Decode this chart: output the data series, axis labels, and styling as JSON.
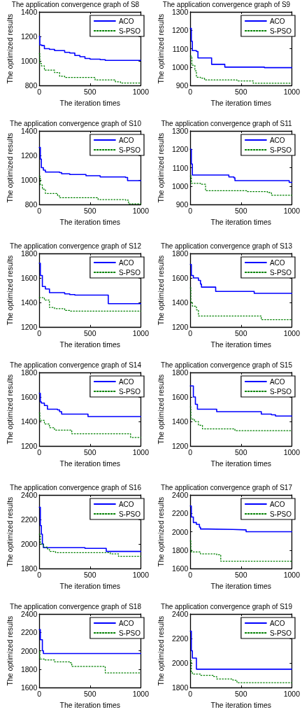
{
  "chart_data": [
    {
      "type": "step",
      "title": "The application convergence graph of S8",
      "xlabel": "The iteration times",
      "ylabel": "The optimized results",
      "xlim": [
        0,
        1000
      ],
      "xticks": [
        0,
        500,
        1000
      ],
      "ylim": [
        800,
        1400
      ],
      "yticks": [
        800,
        1000,
        1200,
        1400
      ],
      "legend": "top right",
      "grid": false,
      "marker": "none",
      "series": [
        {
          "name": "ACO",
          "color": "#0000ff",
          "line_style": "solid",
          "x": [
            0,
            5,
            25,
            50,
            100,
            150,
            250,
            300,
            350,
            400,
            450,
            500,
            600,
            650,
            1000
          ],
          "values": [
            1200,
            1130,
            1125,
            1100,
            1095,
            1085,
            1070,
            1065,
            1045,
            1035,
            1020,
            1015,
            1010,
            1005,
            1005
          ]
        },
        {
          "name": "S-PSO",
          "color": "#008000",
          "line_style": "dotted",
          "x": [
            0,
            5,
            20,
            50,
            150,
            200,
            250,
            500,
            550,
            750,
            800,
            1000
          ],
          "values": [
            1060,
            980,
            960,
            925,
            905,
            875,
            865,
            865,
            845,
            830,
            820,
            820
          ]
        }
      ]
    },
    {
      "type": "step",
      "title": "The application convergence graph of S9",
      "xlabel": "The iteration times",
      "ylabel": "The optimized results",
      "xlim": [
        0,
        1000
      ],
      "xticks": [
        0,
        500,
        1000
      ],
      "ylim": [
        900,
        1300
      ],
      "yticks": [
        900,
        1000,
        1100,
        1200,
        1300
      ],
      "legend": "top right",
      "grid": false,
      "marker": "none",
      "series": [
        {
          "name": "ACO",
          "color": "#0000ff",
          "line_style": "solid",
          "x": [
            0,
            10,
            20,
            60,
            75,
            200,
            210,
            330,
            340,
            700,
            730,
            1000
          ],
          "values": [
            1210,
            1140,
            1090,
            1085,
            1050,
            1050,
            1015,
            1015,
            1000,
            1000,
            997,
            997
          ]
        },
        {
          "name": "S-PSO",
          "color": "#008000",
          "line_style": "dotted",
          "x": [
            0,
            15,
            45,
            60,
            100,
            140,
            450,
            460,
            600,
            620,
            1000
          ],
          "values": [
            1060,
            1010,
            980,
            945,
            940,
            930,
            930,
            925,
            925,
            912,
            912
          ]
        }
      ]
    },
    {
      "type": "step",
      "title": "The application convergence graph of S10",
      "xlabel": "The iteration times",
      "ylabel": "The optimized results",
      "xlim": [
        0,
        1000
      ],
      "xticks": [
        0,
        500,
        1000
      ],
      "ylim": [
        800,
        1400
      ],
      "yticks": [
        800,
        1000,
        1200,
        1400
      ],
      "legend": "top right",
      "grid": false,
      "marker": "none",
      "series": [
        {
          "name": "ACO",
          "color": "#0000ff",
          "line_style": "solid",
          "x": [
            0,
            10,
            20,
            40,
            60,
            200,
            220,
            300,
            460,
            600,
            850,
            870,
            1000
          ],
          "values": [
            1265,
            1170,
            1100,
            1080,
            1065,
            1060,
            1050,
            1045,
            1035,
            1025,
            1020,
            995,
            995
          ]
        },
        {
          "name": "S-PSO",
          "color": "#008000",
          "line_style": "dotted",
          "x": [
            0,
            10,
            30,
            60,
            180,
            200,
            500,
            580,
            850,
            880,
            1000
          ],
          "values": [
            1030,
            960,
            925,
            890,
            870,
            855,
            855,
            840,
            835,
            805,
            805
          ]
        }
      ]
    },
    {
      "type": "step",
      "title": "The application convergence graph of S11",
      "xlabel": "The iteration times",
      "ylabel": "The optimized results",
      "xlim": [
        0,
        1000
      ],
      "xticks": [
        0,
        500,
        1000
      ],
      "ylim": [
        900,
        1300
      ],
      "yticks": [
        900,
        1000,
        1100,
        1200,
        1300
      ],
      "legend": "top right",
      "grid": false,
      "marker": "none",
      "series": [
        {
          "name": "ACO",
          "color": "#0000ff",
          "line_style": "solid",
          "x": [
            0,
            10,
            20,
            370,
            380,
            430,
            440,
            960,
            975,
            1000
          ],
          "values": [
            1200,
            1120,
            1060,
            1060,
            1050,
            1045,
            1030,
            1030,
            1020,
            1020
          ]
        },
        {
          "name": "S-PSO",
          "color": "#008000",
          "line_style": "dotted",
          "x": [
            0,
            10,
            100,
            150,
            480,
            560,
            760,
            800,
            1000
          ],
          "values": [
            1055,
            1015,
            1010,
            975,
            975,
            970,
            965,
            950,
            950
          ]
        }
      ]
    },
    {
      "type": "step",
      "title": "The application convergence graph of S12",
      "xlabel": "The iteration times",
      "ylabel": "The optimized results",
      "xlim": [
        0,
        1000
      ],
      "xticks": [
        0,
        500,
        1000
      ],
      "ylim": [
        1200,
        1800
      ],
      "yticks": [
        1200,
        1400,
        1600,
        1800
      ],
      "legend": "top right",
      "grid": false,
      "marker": "none",
      "series": [
        {
          "name": "ACO",
          "color": "#0000ff",
          "line_style": "solid",
          "x": [
            0,
            10,
            30,
            60,
            100,
            250,
            300,
            350,
            670,
            680,
            1000
          ],
          "values": [
            1720,
            1620,
            1530,
            1510,
            1480,
            1470,
            1465,
            1460,
            1460,
            1390,
            1390
          ]
        },
        {
          "name": "S-PSO",
          "color": "#008000",
          "line_style": "dotted",
          "x": [
            0,
            50,
            100,
            150,
            250,
            300,
            1000
          ],
          "values": [
            1440,
            1420,
            1360,
            1350,
            1335,
            1330,
            1330
          ]
        }
      ]
    },
    {
      "type": "step",
      "title": "The application convergence graph of S13",
      "xlabel": "The iteration times",
      "ylabel": "The optimized results",
      "xlim": [
        0,
        1000
      ],
      "xticks": [
        0,
        500,
        1000
      ],
      "ylim": [
        1200,
        1800
      ],
      "yticks": [
        1200,
        1400,
        1600,
        1800
      ],
      "legend": "top right",
      "grid": false,
      "marker": "none",
      "series": [
        {
          "name": "ACO",
          "color": "#0000ff",
          "line_style": "solid",
          "x": [
            0,
            10,
            30,
            80,
            100,
            110,
            240,
            250,
            610,
            630,
            1000
          ],
          "values": [
            1710,
            1620,
            1600,
            1580,
            1550,
            1525,
            1525,
            1490,
            1490,
            1475,
            1475
          ]
        },
        {
          "name": "S-PSO",
          "color": "#008000",
          "line_style": "dotted",
          "x": [
            0,
            5,
            20,
            60,
            80,
            680,
            700,
            1000
          ],
          "values": [
            1520,
            1400,
            1370,
            1340,
            1290,
            1290,
            1260,
            1260
          ]
        }
      ]
    },
    {
      "type": "step",
      "title": "The application convergence graph of S14",
      "xlabel": "The iteration times",
      "ylabel": "The optimized results",
      "xlim": [
        0,
        1000
      ],
      "xticks": [
        0,
        500,
        1000
      ],
      "ylim": [
        1200,
        1800
      ],
      "yticks": [
        1200,
        1400,
        1600,
        1800
      ],
      "legend": "top right",
      "grid": false,
      "marker": "none",
      "series": [
        {
          "name": "ACO",
          "color": "#0000ff",
          "line_style": "solid",
          "x": [
            0,
            10,
            20,
            50,
            80,
            180,
            200,
            220,
            470,
            480,
            1000
          ],
          "values": [
            1630,
            1560,
            1550,
            1530,
            1500,
            1495,
            1480,
            1460,
            1460,
            1440,
            1440
          ]
        },
        {
          "name": "S-PSO",
          "color": "#008000",
          "line_style": "dotted",
          "x": [
            0,
            5,
            50,
            100,
            150,
            300,
            320,
            880,
            900,
            1000
          ],
          "values": [
            1470,
            1410,
            1380,
            1350,
            1330,
            1330,
            1300,
            1300,
            1270,
            1270
          ]
        }
      ]
    },
    {
      "type": "step",
      "title": "The application convergence graph of S15",
      "xlabel": "The iteration times",
      "ylabel": "The optimized results",
      "xlim": [
        0,
        1000
      ],
      "xticks": [
        0,
        500,
        1000
      ],
      "ylim": [
        1200,
        1800
      ],
      "yticks": [
        1200,
        1400,
        1600,
        1800
      ],
      "legend": "top right",
      "grid": false,
      "marker": "none",
      "series": [
        {
          "name": "ACO",
          "color": "#0000ff",
          "line_style": "solid",
          "x": [
            0,
            30,
            50,
            70,
            240,
            260,
            690,
            700,
            800,
            840,
            1000
          ],
          "values": [
            1690,
            1600,
            1540,
            1500,
            1500,
            1480,
            1480,
            1460,
            1455,
            1445,
            1445
          ]
        },
        {
          "name": "S-PSO",
          "color": "#008000",
          "line_style": "dotted",
          "x": [
            0,
            5,
            40,
            80,
            120,
            420,
            440,
            1000
          ],
          "values": [
            1520,
            1420,
            1400,
            1370,
            1340,
            1340,
            1325,
            1325
          ]
        }
      ]
    },
    {
      "type": "step",
      "title": "The application convergence graph of S16",
      "xlabel": "The iteration times",
      "ylabel": "The optimized results",
      "xlim": [
        0,
        1000
      ],
      "xticks": [
        0,
        500,
        1000
      ],
      "ylim": [
        1800,
        2400
      ],
      "yticks": [
        1800,
        2000,
        2200,
        2400
      ],
      "legend": "top right",
      "grid": false,
      "marker": "none",
      "series": [
        {
          "name": "ACO",
          "color": "#0000ff",
          "line_style": "solid",
          "x": [
            0,
            10,
            20,
            30,
            40,
            440,
            450,
            650,
            660,
            1000
          ],
          "values": [
            2300,
            2150,
            2080,
            2000,
            1970,
            1970,
            1965,
            1965,
            1940,
            1940
          ]
        },
        {
          "name": "S-PSO",
          "color": "#008000",
          "line_style": "dotted",
          "x": [
            0,
            10,
            40,
            80,
            100,
            160,
            700,
            780,
            1000
          ],
          "values": [
            2080,
            2000,
            1975,
            1960,
            1940,
            1930,
            1920,
            1900,
            1900
          ]
        }
      ]
    },
    {
      "type": "step",
      "title": "The application convergence graph of S17",
      "xlabel": "The iteration times",
      "ylabel": "The optimized results",
      "xlim": [
        0,
        1000
      ],
      "xticks": [
        0,
        500,
        1000
      ],
      "ylim": [
        1600,
        2400
      ],
      "yticks": [
        1600,
        1800,
        2000,
        2200,
        2400
      ],
      "legend": "top right",
      "grid": false,
      "marker": "none",
      "series": [
        {
          "name": "ACO",
          "color": "#0000ff",
          "line_style": "solid",
          "x": [
            0,
            10,
            30,
            60,
            90,
            100,
            170,
            420,
            550,
            1000
          ],
          "values": [
            2280,
            2160,
            2100,
            2080,
            2050,
            2030,
            2025,
            2020,
            2000,
            2000
          ]
        },
        {
          "name": "S-PSO",
          "color": "#008000",
          "line_style": "dotted",
          "x": [
            0,
            5,
            10,
            100,
            260,
            300,
            1000
          ],
          "values": [
            1900,
            1800,
            1780,
            1760,
            1750,
            1680,
            1680
          ]
        }
      ]
    },
    {
      "type": "step",
      "title": "The application convergence graph of S18",
      "xlabel": "The iteration times",
      "ylabel": "The optimized results",
      "xlim": [
        0,
        1000
      ],
      "xticks": [
        0,
        500,
        1000
      ],
      "ylim": [
        1600,
        2400
      ],
      "yticks": [
        1600,
        1800,
        2000,
        2200,
        2400
      ],
      "legend": "top right",
      "grid": false,
      "marker": "none",
      "series": [
        {
          "name": "ACO",
          "color": "#0000ff",
          "line_style": "solid",
          "x": [
            0,
            10,
            30,
            40,
            1000
          ],
          "values": [
            2230,
            2120,
            2000,
            1970,
            1970
          ]
        },
        {
          "name": "S-PSO",
          "color": "#008000",
          "line_style": "dotted",
          "x": [
            0,
            5,
            50,
            150,
            300,
            320,
            630,
            650,
            1000
          ],
          "values": [
            1990,
            1910,
            1900,
            1880,
            1870,
            1830,
            1830,
            1760,
            1760
          ]
        }
      ]
    },
    {
      "type": "step",
      "title": "The application convergence graph of S19",
      "xlabel": "The iteration times",
      "ylabel": "The optimized results",
      "xlim": [
        0,
        1000
      ],
      "xticks": [
        0,
        500,
        1000
      ],
      "ylim": [
        1800,
        2400
      ],
      "yticks": [
        1800,
        2000,
        2200,
        2400
      ],
      "legend": "top right",
      "grid": false,
      "marker": "none",
      "series": [
        {
          "name": "ACO",
          "color": "#0000ff",
          "line_style": "solid",
          "x": [
            0,
            10,
            20,
            40,
            60,
            1000
          ],
          "values": [
            2260,
            2100,
            2040,
            2040,
            1950,
            1950
          ]
        },
        {
          "name": "S-PSO",
          "color": "#008000",
          "line_style": "dotted",
          "x": [
            0,
            10,
            20,
            100,
            230,
            260,
            420,
            460,
            1000
          ],
          "values": [
            2020,
            1930,
            1910,
            1900,
            1890,
            1870,
            1860,
            1840,
            1840
          ]
        }
      ]
    }
  ]
}
